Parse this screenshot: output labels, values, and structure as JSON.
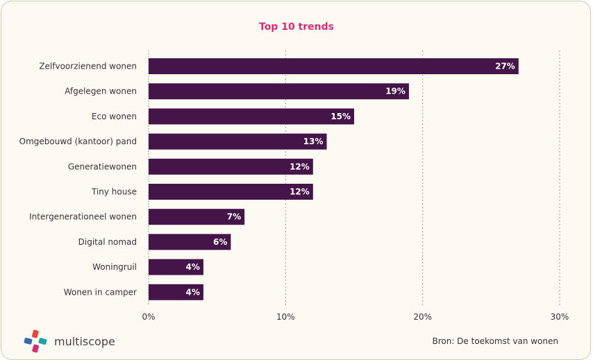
{
  "chart_data": {
    "type": "bar",
    "orientation": "horizontal",
    "title": "Top 10 trends",
    "categories": [
      "Zelfvoorzienend wonen",
      "Afgelegen wonen",
      "Eco wonen",
      "Omgebouwd (kantoor) pand",
      "Generatiewonen",
      "Tiny house",
      "Intergenerationeel wonen",
      "Digital nomad",
      "Woningruil",
      "Wonen in camper"
    ],
    "values": [
      27,
      19,
      15,
      13,
      12,
      12,
      7,
      6,
      4,
      4
    ],
    "data_labels": [
      "27%",
      "19%",
      "15%",
      "13%",
      "12%",
      "12%",
      "7%",
      "6%",
      "4%",
      "4%"
    ],
    "xlim": [
      0,
      30
    ],
    "xticks": [
      0,
      10,
      20,
      30
    ],
    "xtick_labels": [
      "0%",
      "10%",
      "20%",
      "30%"
    ],
    "grid": "vertical dotted",
    "bar_color": "#45154a"
  },
  "footer": {
    "brand": "multiscope",
    "source": "Bron: De toekomst van wonen"
  },
  "colors": {
    "title": "#d72b74",
    "bar": "#45154a",
    "card_border": "#d8c6a6",
    "card_background": "#fdf9f3"
  }
}
